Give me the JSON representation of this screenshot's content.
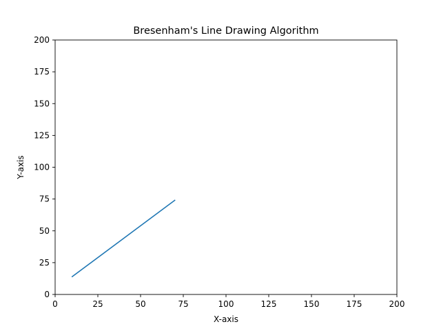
{
  "chart_data": {
    "type": "line",
    "title": "Bresenham's Line Drawing Algorithm",
    "xlabel": "X-axis",
    "ylabel": "Y-axis",
    "xlim": [
      0,
      200
    ],
    "ylim": [
      0,
      200
    ],
    "xticks": [
      0,
      25,
      50,
      75,
      100,
      125,
      150,
      175,
      200
    ],
    "yticks": [
      0,
      25,
      50,
      75,
      100,
      125,
      150,
      175,
      200
    ],
    "grid": false,
    "series": [
      {
        "color": "#1f77b4",
        "x": [
          10,
          70
        ],
        "y": [
          14,
          74
        ]
      }
    ]
  }
}
